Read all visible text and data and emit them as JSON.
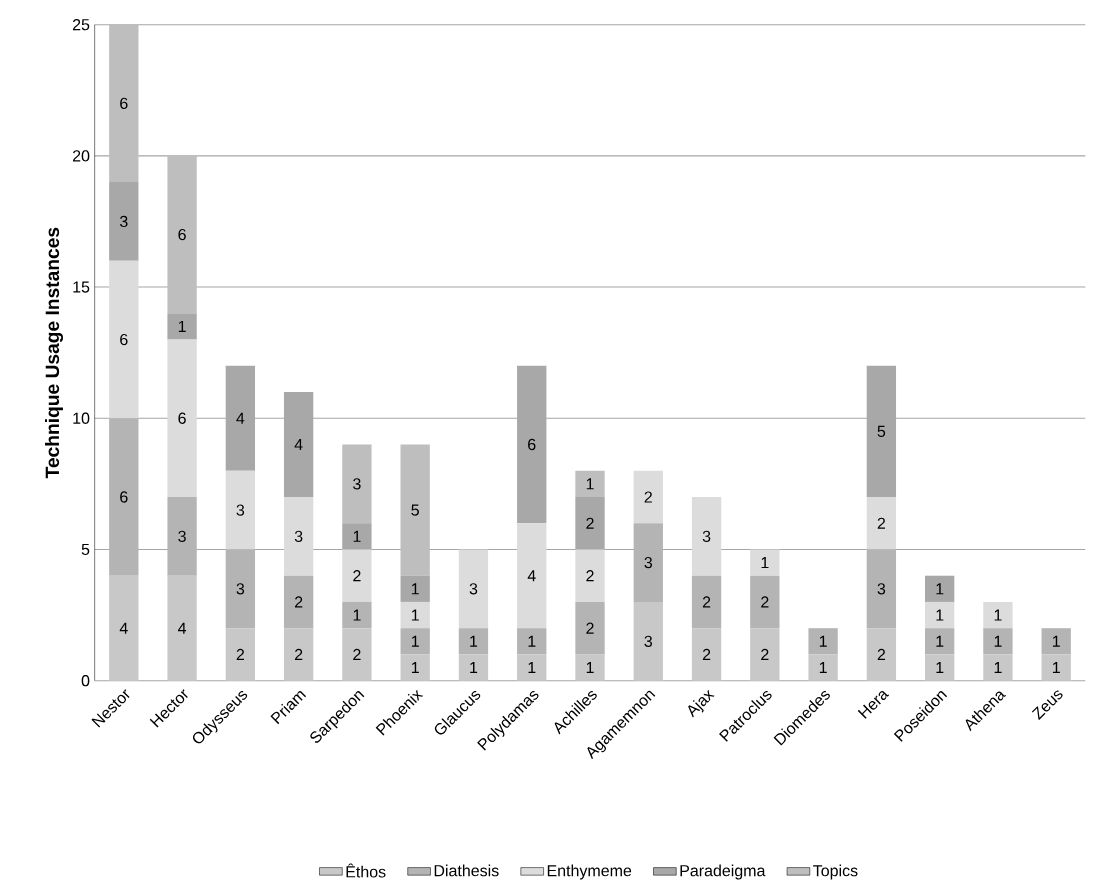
{
  "chart_data": {
    "type": "bar",
    "stacked": true,
    "ylabel": "Technique Usage Instances",
    "categories": [
      "Nestor",
      "Hector",
      "Odysseus",
      "Priam",
      "Sarpedon",
      "Phoenix",
      "Glaucus",
      "Polydamas",
      "Achilles",
      "Agamemnon",
      "Ajax",
      "Patroclus",
      "Diomedes",
      "Hera",
      "Poseidon",
      "Athena",
      "Zeus"
    ],
    "series": [
      {
        "name": "Êthos",
        "color": "#c8c8c8",
        "values": [
          4,
          4,
          2,
          2,
          2,
          1,
          1,
          1,
          1,
          3,
          2,
          2,
          1,
          2,
          1,
          1,
          1
        ]
      },
      {
        "name": "Diathesis",
        "color": "#b4b4b4",
        "values": [
          6,
          3,
          3,
          2,
          1,
          1,
          1,
          1,
          2,
          3,
          2,
          2,
          1,
          3,
          1,
          1,
          1
        ]
      },
      {
        "name": "Enthymeme",
        "color": "#dcdcdc",
        "values": [
          6,
          6,
          3,
          3,
          2,
          1,
          3,
          4,
          2,
          2,
          3,
          1,
          null,
          2,
          1,
          1,
          null
        ]
      },
      {
        "name": "Paradeigma",
        "color": "#a8a8a8",
        "values": [
          3,
          1,
          4,
          4,
          1,
          1,
          null,
          6,
          2,
          null,
          null,
          null,
          null,
          5,
          1,
          null,
          null
        ]
      },
      {
        "name": "Topics",
        "color": "#bebebe",
        "values": [
          6,
          6,
          null,
          null,
          3,
          5,
          null,
          null,
          1,
          null,
          null,
          null,
          null,
          null,
          null,
          null,
          null
        ]
      }
    ],
    "ylim": [
      0,
      25
    ],
    "yticks": [
      0,
      5,
      10,
      15,
      20,
      25
    ],
    "grid": "y",
    "legend": "bottom",
    "data_labels": true
  }
}
